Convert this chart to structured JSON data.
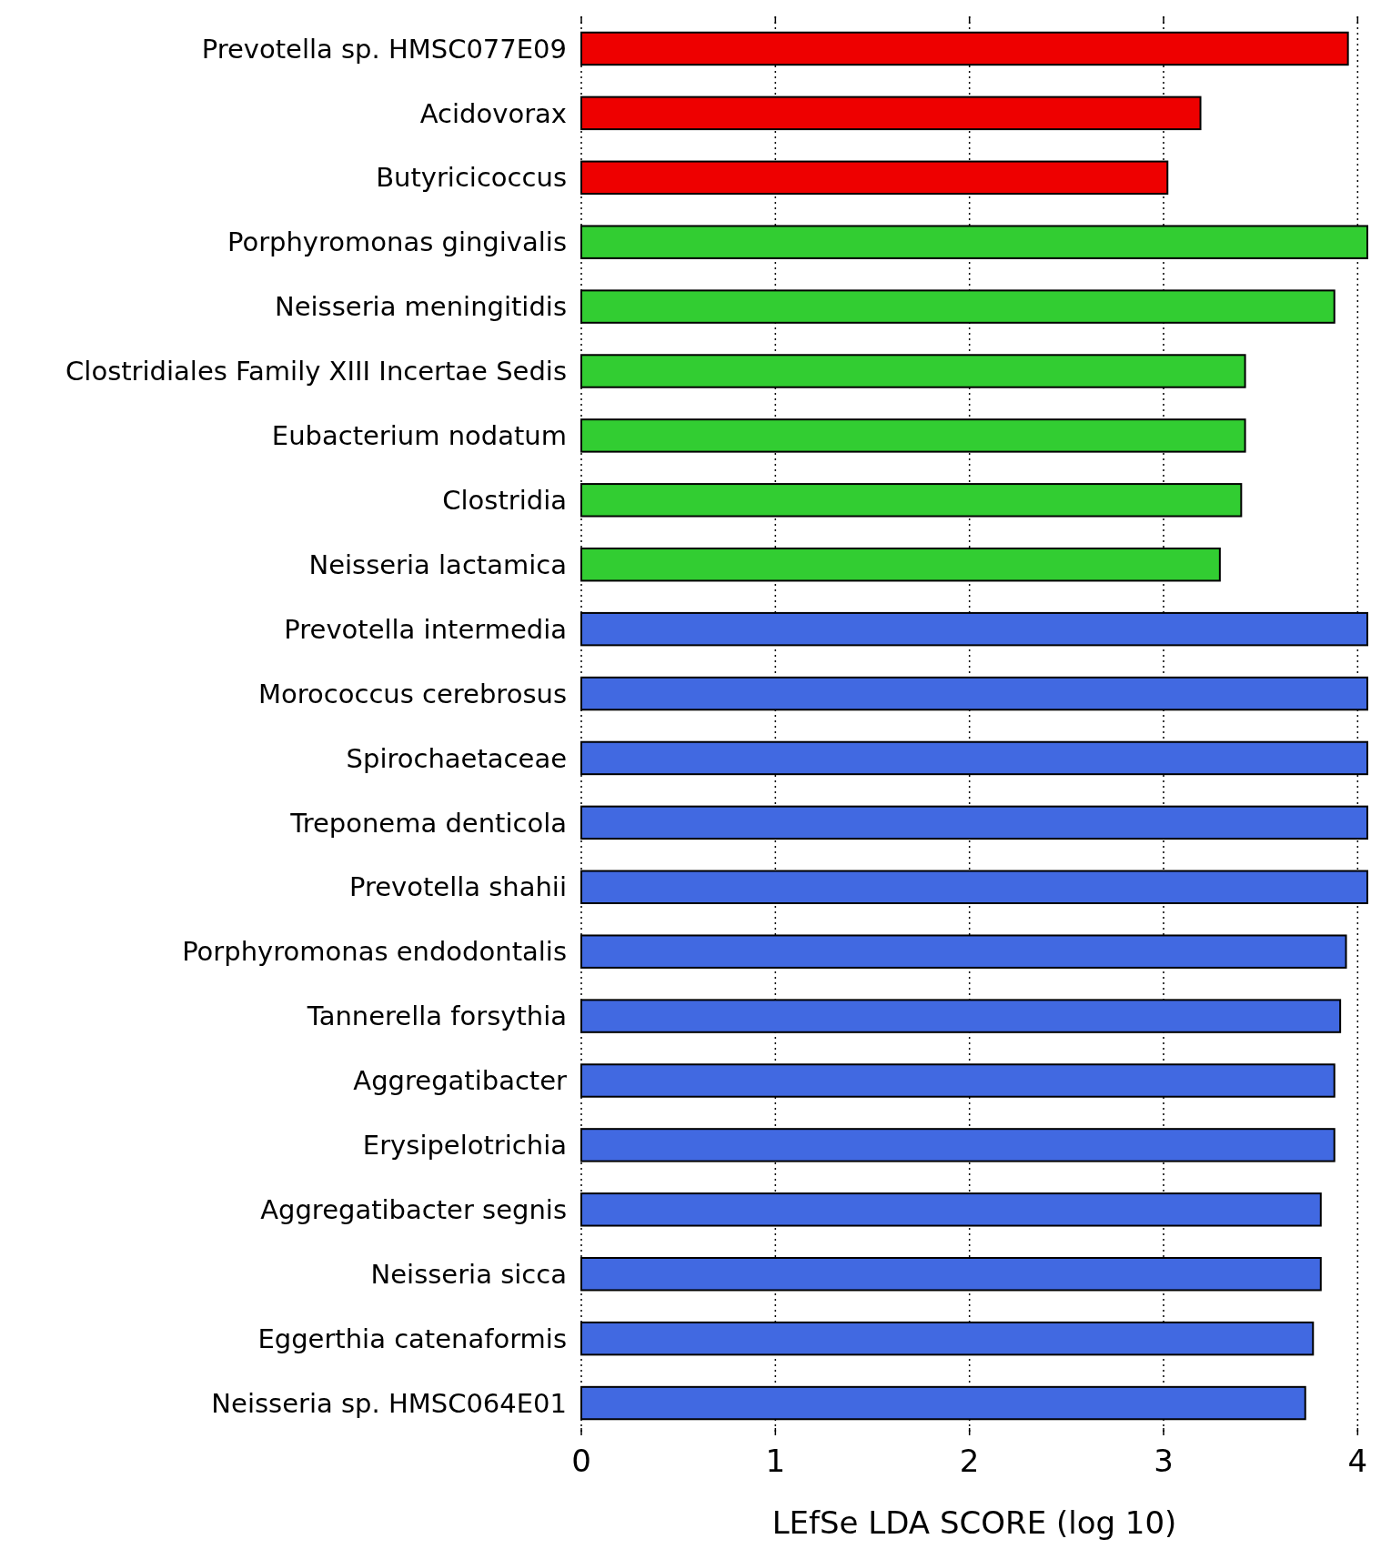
{
  "chart_data": {
    "type": "bar",
    "orientation": "horizontal",
    "xlabel": "LEfSe LDA SCORE (log 10)",
    "categories": [
      "Prevotella sp. HMSC077E09",
      "Acidovorax",
      "Butyricicoccus",
      "Porphyromonas gingivalis",
      "Neisseria meningitidis",
      "Clostridiales Family XIII Incertae Sedis",
      "Eubacterium nodatum",
      "Clostridia",
      "Neisseria lactamica",
      "Prevotella intermedia",
      "Morococcus cerebrosus",
      "Spirochaetaceae",
      "Treponema denticola",
      "Prevotella shahii",
      "Porphyromonas endodontalis",
      "Tannerella forsythia",
      "Aggregatibacter",
      "Erysipelotrichia",
      "Aggregatibacter segnis",
      "Neisseria sicca",
      "Eggerthia catenaformis",
      "Neisseria sp. HMSC064E01"
    ],
    "values": [
      3.95,
      3.19,
      3.02,
      4.05,
      3.88,
      3.42,
      3.42,
      3.4,
      3.29,
      4.05,
      4.05,
      4.05,
      4.05,
      4.05,
      3.94,
      3.91,
      3.88,
      3.88,
      3.81,
      3.81,
      3.77,
      3.73
    ],
    "colors": [
      "#ee0000",
      "#ee0000",
      "#ee0000",
      "#32cd32",
      "#32cd32",
      "#32cd32",
      "#32cd32",
      "#32cd32",
      "#32cd32",
      "#4169e1",
      "#4169e1",
      "#4169e1",
      "#4169e1",
      "#4169e1",
      "#4169e1",
      "#4169e1",
      "#4169e1",
      "#4169e1",
      "#4169e1",
      "#4169e1",
      "#4169e1",
      "#4169e1"
    ],
    "xlim": [
      0,
      4.05
    ],
    "xticks": [
      0,
      1,
      2,
      3,
      4
    ],
    "grid": "x"
  }
}
